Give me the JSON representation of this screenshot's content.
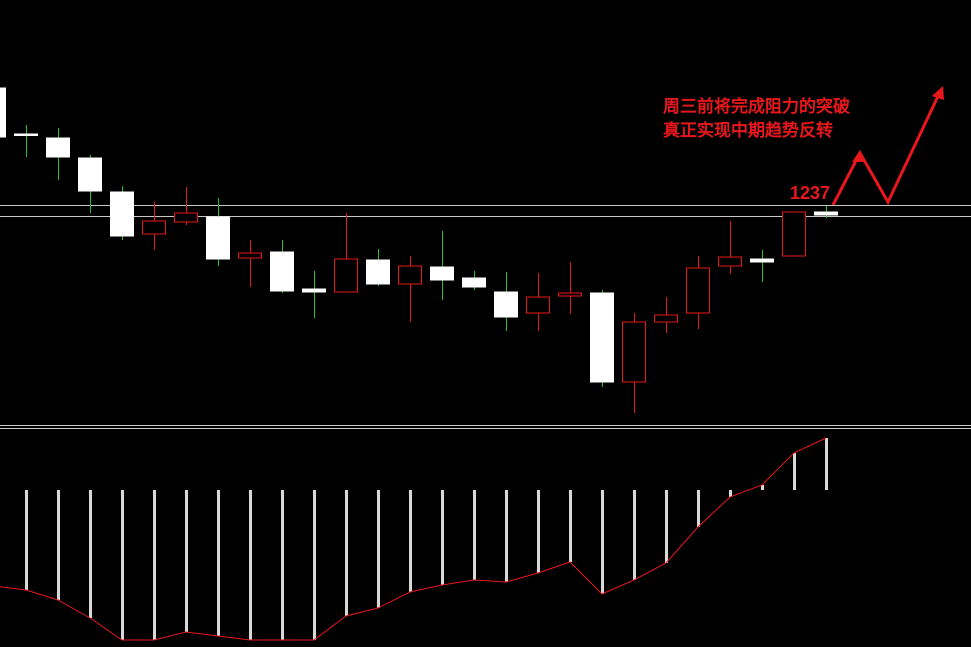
{
  "chart_data": [
    {
      "type": "candlestick",
      "open": [
        1362,
        1316,
        1312,
        1292,
        1258,
        1216,
        1228,
        1233,
        1192,
        1198,
        1161,
        1158,
        1190,
        1166,
        1183,
        1172,
        1158,
        1137,
        1154,
        1157,
        1068,
        1128,
        1137,
        1184,
        1191,
        1194,
        1238
      ],
      "high": [
        1362,
        1325,
        1322,
        1295,
        1264,
        1248,
        1263,
        1252,
        1210,
        1210,
        1179,
        1237,
        1201,
        1194,
        1219,
        1179,
        1178,
        1177,
        1188,
        1160,
        1137,
        1153,
        1194,
        1229,
        1200,
        1238,
        1244
      ],
      "low": [
        1313,
        1293,
        1270,
        1237,
        1210,
        1200,
        1225,
        1184,
        1163,
        1157,
        1132,
        1158,
        1164,
        1128,
        1150,
        1160,
        1119,
        1119,
        1136,
        1063,
        1037,
        1117,
        1121,
        1176,
        1168,
        1194,
        1232
      ],
      "close": [
        1313,
        1315,
        1293,
        1259,
        1214,
        1229,
        1237,
        1191,
        1197,
        1159,
        1158,
        1191,
        1166,
        1184,
        1170,
        1163,
        1133,
        1153,
        1157,
        1068,
        1128,
        1135,
        1182,
        1193,
        1188,
        1238,
        1235
      ],
      "up_color": "#e8171b",
      "down_color": "#ffffff",
      "down_wick_color": "#22c02a",
      "levels": [
        1245,
        1234
      ],
      "level_color": "#c8c8c8",
      "ylim": [
        1025,
        1450
      ],
      "price_label": "1237",
      "annotations": [
        "周三前将完成阻力的突破",
        "真正实现中期趋势反转"
      ]
    },
    {
      "type": "bar",
      "values": [
        null,
        -100,
        -110,
        -128,
        -150,
        -150,
        -142,
        -146,
        -150,
        -150,
        -150,
        -126,
        -118,
        -102,
        -95,
        -90,
        -92,
        -83,
        -72,
        -104,
        -90,
        -73,
        -37,
        -7,
        5,
        37,
        52
      ],
      "line": [
        -96,
        -100,
        -110,
        -128,
        -150,
        -150,
        -142,
        -146,
        -150,
        -150,
        -150,
        -126,
        -118,
        -102,
        -95,
        -90,
        -92,
        -83,
        -72,
        -104,
        -90,
        -73,
        -37,
        -7,
        5,
        37,
        52
      ],
      "color": "#d8d8d8",
      "line_color": "#e8171b",
      "ylim": [
        -157,
        62
      ]
    }
  ]
}
